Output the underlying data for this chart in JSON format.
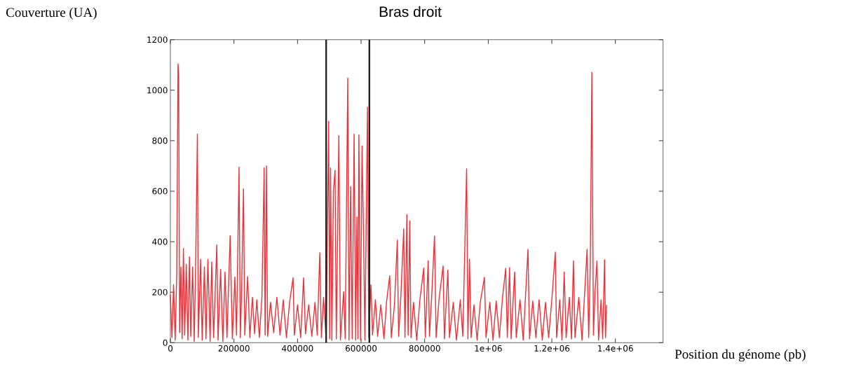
{
  "chart_data": {
    "type": "line",
    "title": "Bras droit",
    "xlabel": "Position du génome (pb)",
    "ylabel": "Couverture (UA)",
    "xlim": [
      0,
      1550000
    ],
    "ylim": [
      0,
      1200
    ],
    "xticks": [
      0,
      200000,
      400000,
      600000,
      800000,
      {
        "value": 1000000,
        "label": "1e+06"
      },
      {
        "value": 1200000,
        "label": "1.2e+06"
      },
      {
        "value": 1400000,
        "label": "1.4e+06"
      }
    ],
    "yticks": [
      0,
      200,
      400,
      600,
      800,
      1000,
      1200
    ],
    "grid": false,
    "marker": "none",
    "line_style": "solid",
    "ref_lines": [
      {
        "axis": "x",
        "value": 490000,
        "color": "#222222"
      },
      {
        "axis": "x",
        "value": 626000,
        "color": "#222222"
      }
    ],
    "series": [
      {
        "color": "#e8333b",
        "x": [
          0,
          5000,
          10000,
          15000,
          20000,
          24000,
          26000,
          29000,
          33000,
          37000,
          41000,
          45000,
          50000,
          55000,
          60000,
          64000,
          70000,
          75000,
          80000,
          85000,
          88000,
          95000,
          100000,
          107000,
          112000,
          118000,
          125000,
          130000,
          136000,
          146000,
          150000,
          158000,
          165000,
          172000,
          178000,
          188000,
          195000,
          203000,
          208000,
          216000,
          220000,
          224000,
          230000,
          234000,
          243000,
          250000,
          258000,
          265000,
          272000,
          280000,
          288000,
          295000,
          298000,
          302000,
          306000,
          315000,
          325000,
          335000,
          345000,
          355000,
          365000,
          375000,
          386000,
          390000,
          400000,
          410000,
          419000,
          425000,
          435000,
          445000,
          455000,
          462000,
          470000,
          475000,
          482000,
          490000,
          498000,
          501000,
          504000,
          508000,
          513000,
          518000,
          522000,
          530000,
          535000,
          545000,
          550000,
          558000,
          562000,
          567000,
          572000,
          578000,
          583000,
          587000,
          590000,
          593000,
          598000,
          603000,
          608000,
          612000,
          620000,
          624000,
          631000,
          636000,
          645000,
          652000,
          662000,
          672000,
          680000,
          690000,
          695000,
          705000,
          714000,
          718000,
          725000,
          734000,
          738000,
          744000,
          748000,
          753000,
          757000,
          765000,
          775000,
          785000,
          797000,
          802000,
          811000,
          815000,
          822000,
          831000,
          836000,
          845000,
          858000,
          862000,
          873000,
          878000,
          890000,
          900000,
          912000,
          920000,
          932000,
          936000,
          941000,
          946000,
          955000,
          965000,
          975000,
          988000,
          993000,
          1005000,
          1015000,
          1025000,
          1035000,
          1045000,
          1055000,
          1060000,
          1067000,
          1072000,
          1083000,
          1088000,
          1100000,
          1110000,
          1125000,
          1130000,
          1140000,
          1150000,
          1160000,
          1170000,
          1180000,
          1190000,
          1200000,
          1211000,
          1215000,
          1225000,
          1232000,
          1239000,
          1245000,
          1255000,
          1262000,
          1268000,
          1273000,
          1285000,
          1295000,
          1311000,
          1316000,
          1321000,
          1326000,
          1331000,
          1336000,
          1342000,
          1347000,
          1355000,
          1360000,
          1366000,
          1369000,
          1372000
        ],
        "values": [
          190,
          20,
          230,
          10,
          270,
          1104,
          1062,
          40,
          300,
          15,
          373,
          30,
          310,
          10,
          340,
          25,
          300,
          5,
          350,
          826,
          20,
          330,
          10,
          300,
          15,
          330,
          5,
          320,
          20,
          387,
          10,
          290,
          5,
          280,
          20,
          424,
          15,
          260,
          30,
          695,
          20,
          200,
          609,
          30,
          262,
          20,
          180,
          35,
          170,
          20,
          180,
          692,
          30,
          700,
          25,
          160,
          40,
          180,
          30,
          170,
          20,
          160,
          257,
          30,
          150,
          20,
          257,
          35,
          150,
          25,
          160,
          30,
          356,
          20,
          180,
          10,
          877,
          15,
          692,
          10,
          600,
          683,
          15,
          820,
          10,
          202,
          15,
          1048,
          10,
          618,
          15,
          826,
          10,
          498,
          15,
          823,
          10,
          780,
          406,
          10,
          933,
          20,
          229,
          30,
          170,
          25,
          150,
          15,
          160,
          265,
          20,
          150,
          406,
          25,
          180,
          451,
          20,
          507,
          30,
          483,
          20,
          160,
          10,
          170,
          295,
          20,
          325,
          25,
          180,
          422,
          20,
          170,
          304,
          15,
          287,
          20,
          160,
          10,
          170,
          25,
          689,
          15,
          331,
          20,
          150,
          10,
          160,
          259,
          20,
          160,
          10,
          165,
          20,
          180,
          294,
          20,
          297,
          15,
          280,
          20,
          170,
          10,
          370,
          15,
          165,
          20,
          170,
          10,
          160,
          20,
          170,
          359,
          20,
          170,
          10,
          280,
          20,
          180,
          15,
          324,
          20,
          180,
          10,
          370,
          20,
          300,
          1071,
          30,
          200,
          324,
          10,
          170,
          15,
          329,
          20,
          150
        ]
      }
    ]
  }
}
